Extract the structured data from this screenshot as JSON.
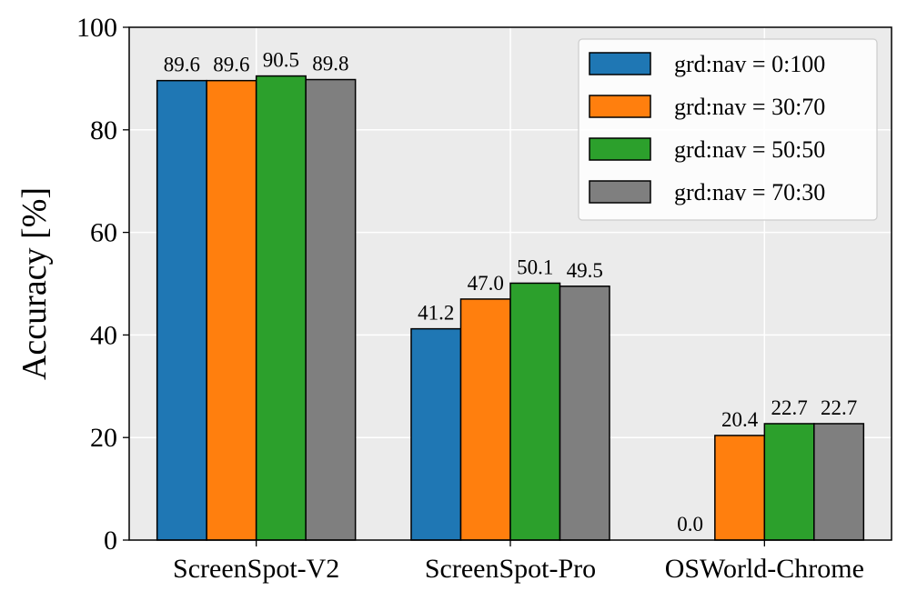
{
  "chart_data": {
    "type": "bar",
    "title": "",
    "xlabel": "",
    "ylabel": "Accuracy [%]",
    "ylim": [
      0,
      100
    ],
    "yticks": [
      0,
      20,
      40,
      60,
      80,
      100
    ],
    "grid": true,
    "legend_position": "top-right",
    "categories": [
      "ScreenSpot-V2",
      "ScreenSpot-Pro",
      "OSWorld-Chrome"
    ],
    "series": [
      {
        "name": "grd:nav = 0:100",
        "color": "#1f77b4",
        "values": [
          89.6,
          41.2,
          0.0
        ],
        "labels": [
          "89.6",
          "41.2",
          "0.0"
        ]
      },
      {
        "name": "grd:nav = 30:70",
        "color": "#ff7f0e",
        "values": [
          89.6,
          47.0,
          20.4
        ],
        "labels": [
          "89.6",
          "47.0",
          "20.4"
        ]
      },
      {
        "name": "grd:nav = 50:50",
        "color": "#2ca02c",
        "values": [
          90.5,
          50.1,
          22.7
        ],
        "labels": [
          "90.5",
          "50.1",
          "22.7"
        ]
      },
      {
        "name": "grd:nav = 70:30",
        "color": "#7f7f7f",
        "values": [
          89.8,
          49.5,
          22.7
        ],
        "labels": [
          "89.8",
          "49.5",
          "22.7"
        ]
      }
    ]
  }
}
